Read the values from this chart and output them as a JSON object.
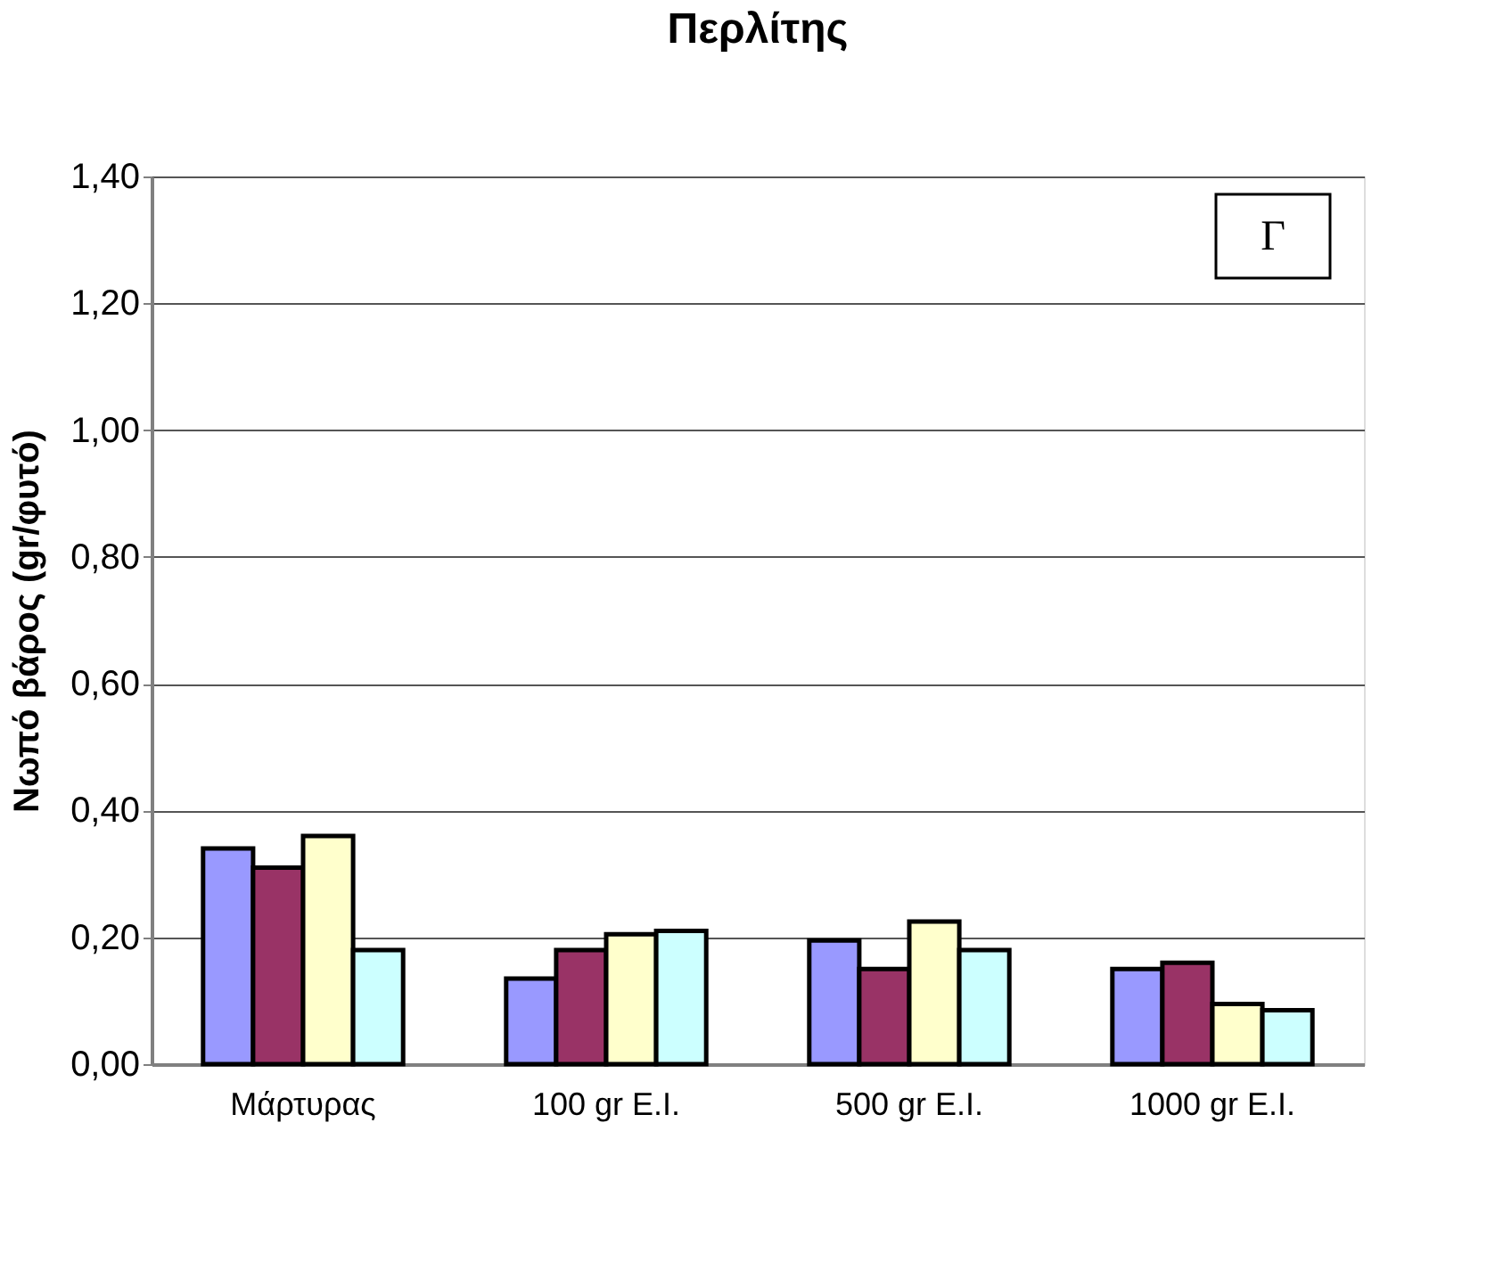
{
  "chart_data": {
    "type": "bar",
    "title": "Περλίτης",
    "ylabel": "Νωπό βάρος (gr/φυτό)",
    "categories": [
      "Μάρτυρας",
      "100 gr E.I.",
      "500 gr E.I.",
      "1000 gr E.I."
    ],
    "series": [
      {
        "color": "#9999ff",
        "values": [
          0.34,
          0.135,
          0.195,
          0.15
        ]
      },
      {
        "color": "#993366",
        "values": [
          0.31,
          0.18,
          0.15,
          0.16
        ]
      },
      {
        "color": "#ffffcc",
        "values": [
          0.36,
          0.205,
          0.225,
          0.095
        ]
      },
      {
        "color": "#ccffff",
        "values": [
          0.18,
          0.21,
          0.18,
          0.085
        ]
      }
    ],
    "ylim": [
      0,
      1.4
    ],
    "yticks": [
      {
        "value": 0,
        "label": "0,00"
      },
      {
        "value": 0.2,
        "label": "0,20"
      },
      {
        "value": 0.4,
        "label": "0,40"
      },
      {
        "value": 0.6,
        "label": "0,60"
      },
      {
        "value": 0.8,
        "label": "0,80"
      },
      {
        "value": 1.0,
        "label": "1,00"
      },
      {
        "value": 1.2,
        "label": "1,20"
      },
      {
        "value": 1.4,
        "label": "1,40"
      }
    ],
    "grid": "y",
    "legend": false,
    "annotations": [
      "Γ"
    ]
  }
}
